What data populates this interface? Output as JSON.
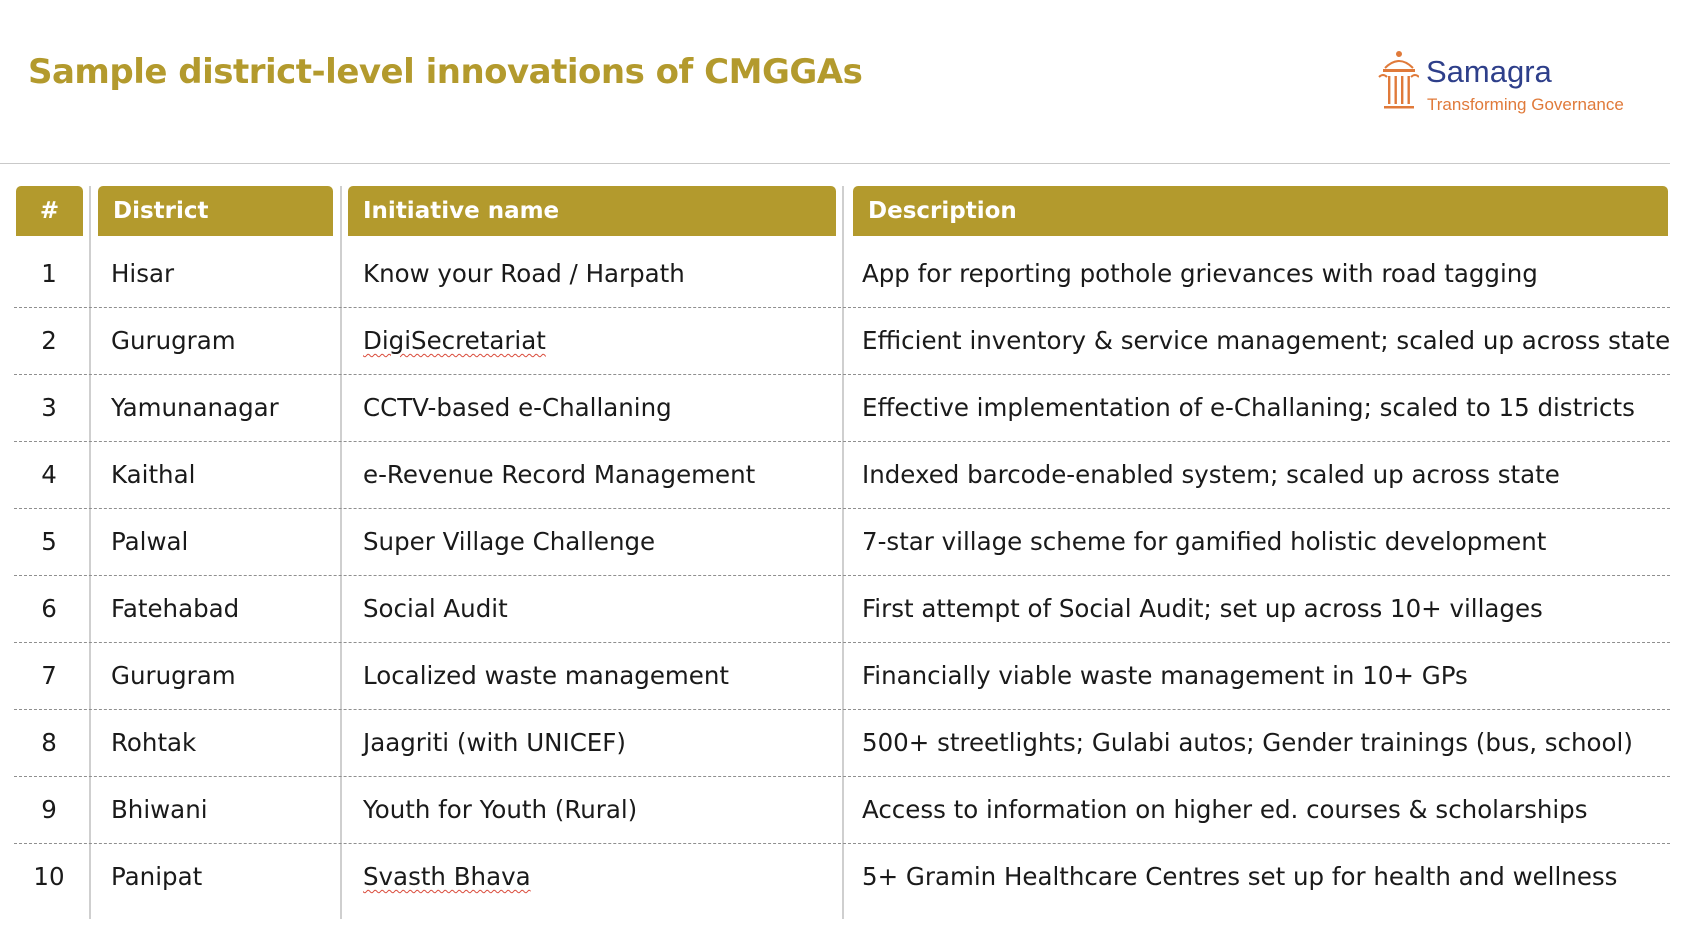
{
  "slide": {
    "title": "Sample district-level innovations of CMGGAs"
  },
  "logo": {
    "name": "Samagra",
    "tagline": "Transforming Governance",
    "icon": "temple-pillars-icon",
    "name_color": "#2e3f8a",
    "tagline_color": "#e07a3a"
  },
  "colors": {
    "accent": "#b39a2d",
    "header_text": "#ffffff"
  },
  "table": {
    "headers": [
      "#",
      "District",
      "Initiative name",
      "Description"
    ],
    "rows": [
      {
        "num": "1",
        "district": "Hisar",
        "initiative": "Know your Road / Harpath",
        "description": "App for reporting pothole grievances with road tagging"
      },
      {
        "num": "2",
        "district": "Gurugram",
        "initiative": "DigiSecretariat",
        "description": "Efficient inventory & service management; scaled up across state"
      },
      {
        "num": "3",
        "district": "Yamunanagar",
        "initiative": "CCTV-based e-Challaning",
        "description": "Effective implementation of e-Challaning; scaled to 15 districts"
      },
      {
        "num": "4",
        "district": "Kaithal",
        "initiative": "e-Revenue Record Management",
        "description": "Indexed barcode-enabled system; scaled up across state"
      },
      {
        "num": "5",
        "district": "Palwal",
        "initiative": "Super Village Challenge",
        "description": "7-star village scheme for gamified holistic development"
      },
      {
        "num": "6",
        "district": "Fatehabad",
        "initiative": "Social Audit",
        "description": "First attempt of Social Audit; set up across 10+ villages"
      },
      {
        "num": "7",
        "district": "Gurugram",
        "initiative": "Localized waste management",
        "description": "Financially viable waste management in 10+ GPs"
      },
      {
        "num": "8",
        "district": "Rohtak",
        "initiative": "Jaagriti (with UNICEF)",
        "description": "500+ streetlights; Gulabi autos; Gender trainings (bus, school)"
      },
      {
        "num": "9",
        "district": "Bhiwani",
        "initiative": "Youth for Youth (Rural)",
        "description": "Access to information on higher ed. courses & scholarships"
      },
      {
        "num": "10",
        "district": "Panipat",
        "initiative": "Svasth Bhava",
        "description": "5+ Gramin Healthcare Centres set up for health and wellness"
      }
    ]
  }
}
